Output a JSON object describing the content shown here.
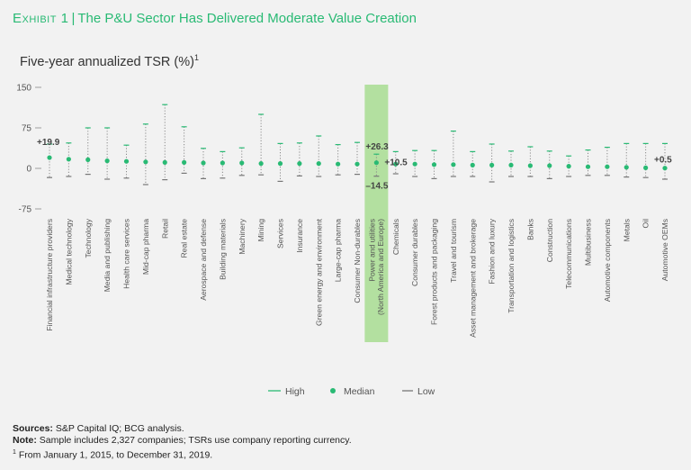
{
  "exhibit": {
    "label": "Exhibit 1",
    "separator": "|",
    "title": "The P&U Sector Has Delivered Moderate Value Creation"
  },
  "subtitle": {
    "text": "Five-year annualized TSR (%)",
    "footnote_mark": "1"
  },
  "colors": {
    "accent": "#29ba74",
    "highlight": "#b3e0a0",
    "low_line": "#777777",
    "background": "#f2f2f2"
  },
  "chart_data": {
    "type": "range-dot",
    "y_axis": {
      "ticks": [
        150,
        75,
        0,
        -75
      ],
      "tick_labels": [
        "150",
        "75",
        "0",
        "-75"
      ],
      "min": -75,
      "max": 150,
      "grid": false
    },
    "legend": {
      "position": "bottom-right",
      "items": [
        "High",
        "Median",
        "Low"
      ]
    },
    "highlight_category_index": 17,
    "categories": [
      {
        "name": "Financial infrastructure providers",
        "high": 45,
        "median": 19.9,
        "low": -17
      },
      {
        "name": "Medical technology",
        "high": 47,
        "median": 17,
        "low": -15
      },
      {
        "name": "Technology",
        "high": 75,
        "median": 16,
        "low": -11
      },
      {
        "name": "Media and publishing",
        "high": 75,
        "median": 14,
        "low": -20
      },
      {
        "name": "Health care services",
        "high": 43,
        "median": 13,
        "low": -18
      },
      {
        "name": "Mid-cap pharma",
        "high": 82,
        "median": 12,
        "low": -30
      },
      {
        "name": "Retail",
        "high": 118,
        "median": 11,
        "low": -21
      },
      {
        "name": "Real estate",
        "high": 77,
        "median": 11,
        "low": -9
      },
      {
        "name": "Aerospace and defense",
        "high": 37,
        "median": 10,
        "low": -19
      },
      {
        "name": "Building materials",
        "high": 31,
        "median": 10,
        "low": -18
      },
      {
        "name": "Machinery",
        "high": 38,
        "median": 10,
        "low": -13
      },
      {
        "name": "Mining",
        "high": 100,
        "median": 9,
        "low": -12
      },
      {
        "name": "Services",
        "high": 46,
        "median": 9,
        "low": -24
      },
      {
        "name": "Insurance",
        "high": 47,
        "median": 9,
        "low": -14
      },
      {
        "name": "Green energy and environment",
        "high": 60,
        "median": 9,
        "low": -15
      },
      {
        "name": "Large-cap pharma",
        "high": 44,
        "median": 8,
        "low": -12
      },
      {
        "name": "Consumer Non-durables",
        "high": 48,
        "median": 8,
        "low": -11
      },
      {
        "name": "Power and utilities\n(North America and Europe)",
        "high": 26.3,
        "median": 10.5,
        "low": -14.5
      },
      {
        "name": "Chemicals",
        "high": 31,
        "median": 8,
        "low": -10
      },
      {
        "name": "Consumer durables",
        "high": 33,
        "median": 8,
        "low": -15
      },
      {
        "name": "Forest products and packaging",
        "high": 33,
        "median": 7,
        "low": -19
      },
      {
        "name": "Travel and tourism",
        "high": 69,
        "median": 7,
        "low": -15
      },
      {
        "name": "Asset management and brokerage",
        "high": 31,
        "median": 6,
        "low": -15
      },
      {
        "name": "Fashion and luxury",
        "high": 45,
        "median": 6,
        "low": -25
      },
      {
        "name": "Transportation and logistics",
        "high": 32,
        "median": 6,
        "low": -15
      },
      {
        "name": "Banks",
        "high": 40,
        "median": 5,
        "low": -15
      },
      {
        "name": "Construction",
        "high": 32,
        "median": 5,
        "low": -19
      },
      {
        "name": "Telecommunications",
        "high": 23,
        "median": 4,
        "low": -15
      },
      {
        "name": "Multibusiness",
        "high": 34,
        "median": 3,
        "low": -13
      },
      {
        "name": "Automotive components",
        "high": 39,
        "median": 3,
        "low": -13
      },
      {
        "name": "Metals",
        "high": 46,
        "median": 2,
        "low": -16
      },
      {
        "name": "Oil",
        "high": 46,
        "median": 1,
        "low": -17
      },
      {
        "name": "Automotive OEMs",
        "high": 46,
        "median": 0.5,
        "low": -20
      }
    ],
    "annotations": [
      {
        "category_index": 0,
        "series": "median",
        "text": "+19.9"
      },
      {
        "category_index": 17,
        "series": "high",
        "text": "+26.3"
      },
      {
        "category_index": 17,
        "series": "median",
        "text": "+10.5"
      },
      {
        "category_index": 17,
        "series": "low",
        "text": "–14.5"
      },
      {
        "category_index": 32,
        "series": "median",
        "text": "+0.5"
      }
    ]
  },
  "notes": {
    "sources_label": "Sources:",
    "sources_text": "S&P Capital IQ; BCG analysis.",
    "note_label": "Note:",
    "note_text": "Sample includes 2,327 companies; TSRs use company reporting currency.",
    "footnote_mark": "1",
    "footnote_text": "From January 1, 2015, to December 31, 2019."
  }
}
